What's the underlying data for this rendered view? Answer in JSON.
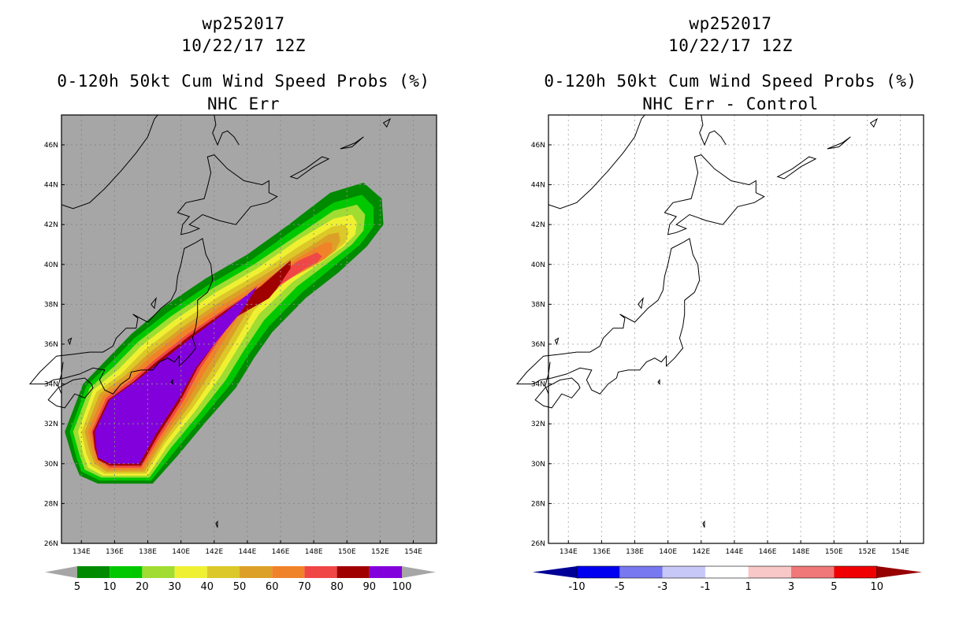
{
  "panels": [
    {
      "title_line1": "wp252017",
      "title_line2": "10/22/17 12Z",
      "title_line3": "0-120h 50kt Cum Wind Speed Probs (%)",
      "title_line4": "NHC Err"
    },
    {
      "title_line1": "wp252017",
      "title_line2": "10/22/17 12Z",
      "title_line3": "0-120h 50kt Cum Wind Speed Probs (%)",
      "title_line4": "NHC Err - Control"
    }
  ],
  "chart_data": [
    {
      "type": "heatmap",
      "title": "0-120h 50kt Cum Wind Speed Probs (%)",
      "subtitle": "NHC Err",
      "storm": "wp252017",
      "date": "10/22/17 12Z",
      "x_ticks": [
        "134E",
        "136E",
        "138E",
        "140E",
        "142E",
        "144E",
        "146E",
        "148E",
        "150E",
        "152E",
        "154E"
      ],
      "y_ticks": [
        "46N",
        "44N",
        "42N",
        "40N",
        "38N",
        "36N",
        "34N",
        "32N",
        "30N",
        "28N",
        "26N"
      ],
      "xlim": [
        132.8,
        155.4
      ],
      "ylim": [
        26,
        47.5
      ],
      "background_color": "#a6a6a6",
      "legend_values": [
        "5",
        "10",
        "20",
        "30",
        "40",
        "50",
        "60",
        "70",
        "80",
        "90",
        "100"
      ],
      "legend_colors": [
        "#008a00",
        "#00c800",
        "#a0dc32",
        "#f0f032",
        "#dcc828",
        "#dca028",
        "#f08228",
        "#f04646",
        "#a00000",
        "#8200dc"
      ]
    },
    {
      "type": "heatmap",
      "title": "0-120h 50kt Cum Wind Speed Probs (%)",
      "subtitle": "NHC Err - Control",
      "storm": "wp252017",
      "date": "10/22/17 12Z",
      "x_ticks": [
        "134E",
        "136E",
        "138E",
        "140E",
        "142E",
        "144E",
        "146E",
        "148E",
        "150E",
        "152E",
        "154E"
      ],
      "y_ticks": [
        "46N",
        "44N",
        "42N",
        "40N",
        "38N",
        "36N",
        "34N",
        "32N",
        "30N",
        "28N",
        "26N"
      ],
      "xlim": [
        132.8,
        155.4
      ],
      "ylim": [
        26,
        47.5
      ],
      "background_color": "#ffffff",
      "legend_values": [
        "-10",
        "-5",
        "-3",
        "-1",
        "1",
        "3",
        "5",
        "10"
      ],
      "legend_colors": [
        "#000096",
        "#0000f0",
        "#7878f0",
        "#c8c8f8",
        "#ffffff",
        "#f8c8c8",
        "#f07878",
        "#f00000",
        "#960000"
      ]
    }
  ]
}
